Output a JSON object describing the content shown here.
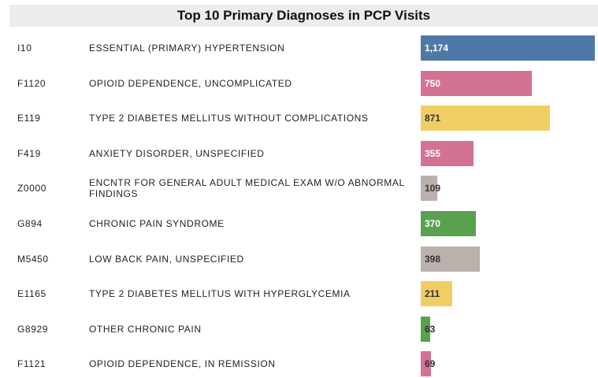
{
  "chart_data": {
    "type": "bar",
    "title": "Top 10 Primary Diagnoses in PCP Visits",
    "codes": [
      "I10",
      "F1120",
      "E119",
      "F419",
      "Z0000",
      "G894",
      "M5450",
      "E1165",
      "G8929",
      "F1121"
    ],
    "categories": [
      "ESSENTIAL (PRIMARY) HYPERTENSION",
      "OPIOID DEPENDENCE, UNCOMPLICATED",
      "TYPE 2 DIABETES MELLITUS WITHOUT COMPLICATIONS",
      "ANXIETY DISORDER, UNSPECIFIED",
      "ENCNTR FOR GENERAL ADULT MEDICAL EXAM W/O ABNORMAL FINDINGS",
      "CHRONIC PAIN SYNDROME",
      "LOW BACK PAIN, UNSPECIFIED",
      "TYPE 2 DIABETES MELLITUS WITH HYPERGLYCEMIA",
      "OTHER CHRONIC PAIN",
      "OPIOID DEPENDENCE, IN REMISSION"
    ],
    "values": [
      1174,
      750,
      871,
      355,
      109,
      370,
      398,
      211,
      63,
      69
    ],
    "value_labels": [
      "1,174",
      "750",
      "871",
      "355",
      "109",
      "370",
      "398",
      "211",
      "63",
      "69"
    ],
    "colors": [
      "#4e79a7",
      "#d37295",
      "#f1ce63",
      "#d37295",
      "#bab0ac",
      "#59a14f",
      "#bab0ac",
      "#f1ce63",
      "#59a14f",
      "#d37295"
    ]
  }
}
